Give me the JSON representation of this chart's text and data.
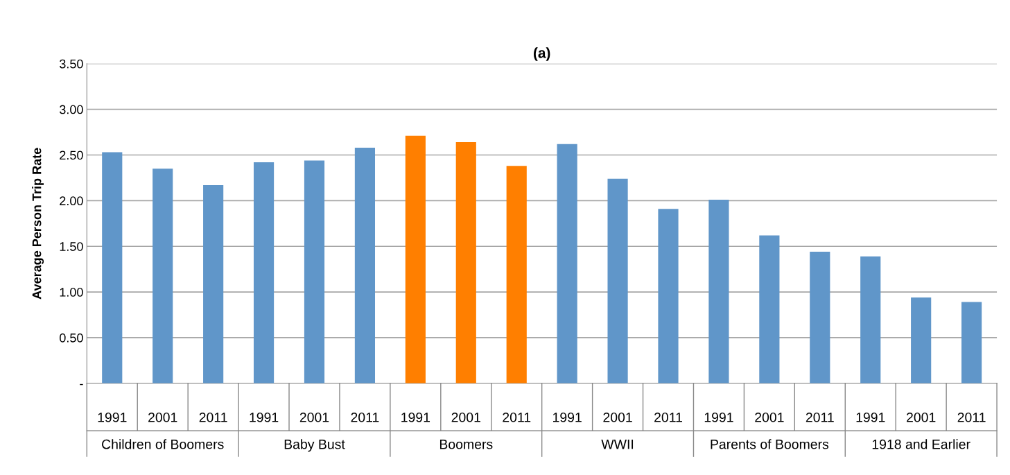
{
  "chart_data": {
    "type": "bar",
    "title": "(a)",
    "ylabel": "Average Person Trip Rate",
    "categories": [
      "1991",
      "2001",
      "2011",
      "1991",
      "2001",
      "2011",
      "1991",
      "2001",
      "2011",
      "1991",
      "2001",
      "2011",
      "1991",
      "2001",
      "2011",
      "1991",
      "2001",
      "2011"
    ],
    "values": [
      2.53,
      2.35,
      2.17,
      2.42,
      2.44,
      2.58,
      2.71,
      2.64,
      2.38,
      2.62,
      2.24,
      1.91,
      2.01,
      1.62,
      1.44,
      1.39,
      0.94,
      0.89
    ],
    "colors": [
      "#6096c9",
      "#6096c9",
      "#6096c9",
      "#6096c9",
      "#6096c9",
      "#6096c9",
      "#ff7f00",
      "#ff7f00",
      "#ff7f00",
      "#6096c9",
      "#6096c9",
      "#6096c9",
      "#6096c9",
      "#6096c9",
      "#6096c9",
      "#6096c9",
      "#6096c9",
      "#6096c9"
    ],
    "annotations": [
      "Children of Boomers",
      "Baby Bust",
      "Boomers",
      "WWII",
      "Parents of Boomers",
      "1918 and Earlier"
    ],
    "ylim": [
      0,
      3.5
    ],
    "yticks": [
      {
        "value": 0,
        "label": "-"
      },
      {
        "value": 0.5,
        "label": "0.50"
      },
      {
        "value": 1,
        "label": "1.00"
      },
      {
        "value": 1.5,
        "label": "1.50"
      },
      {
        "value": 2,
        "label": "2.00"
      },
      {
        "value": 2.5,
        "label": "2.50"
      },
      {
        "value": 3,
        "label": "3.00"
      },
      {
        "value": 3.5,
        "label": "3.50"
      }
    ],
    "grid": "y"
  }
}
